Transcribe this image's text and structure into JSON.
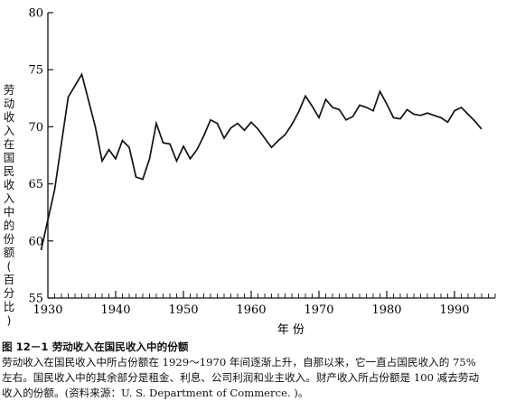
{
  "chart_data": {
    "type": "line",
    "ylabel": "劳动收入在国民收入中的份额(百分比)",
    "xlabel": "年 份",
    "xlim": [
      1930,
      1996
    ],
    "ylim": [
      55,
      80
    ],
    "x_ticks": [
      1930,
      1940,
      1950,
      1960,
      1970,
      1980,
      1990
    ],
    "y_ticks": [
      55,
      60,
      65,
      70,
      75,
      80
    ],
    "grid": false,
    "series": [
      {
        "x": [
          1929,
          1931,
          1933,
          1935,
          1937,
          1938,
          1939,
          1940,
          1941,
          1942,
          1943,
          1944,
          1945,
          1946,
          1947,
          1948,
          1949,
          1950,
          1951,
          1952,
          1953,
          1954,
          1955,
          1956,
          1957,
          1958,
          1959,
          1960,
          1961,
          1962,
          1963,
          1964,
          1965,
          1966,
          1967,
          1968,
          1969,
          1970,
          1971,
          1972,
          1973,
          1974,
          1975,
          1976,
          1977,
          1978,
          1979,
          1980,
          1981,
          1982,
          1983,
          1984,
          1985,
          1986,
          1987,
          1988,
          1989,
          1990,
          1991,
          1992,
          1993,
          1994
        ],
        "values": [
          59.2,
          64.5,
          72.6,
          74.6,
          70.0,
          67.0,
          68.0,
          67.2,
          68.8,
          68.2,
          65.6,
          65.4,
          67.2,
          70.3,
          68.6,
          68.5,
          67.0,
          68.3,
          67.2,
          68.0,
          69.2,
          70.6,
          70.3,
          69.0,
          69.9,
          70.3,
          69.7,
          70.4,
          69.8,
          69.0,
          68.2,
          68.8,
          69.3,
          70.2,
          71.3,
          72.7,
          71.8,
          70.8,
          72.4,
          71.7,
          71.5,
          70.6,
          70.9,
          71.9,
          71.7,
          71.4,
          73.1,
          72.0,
          70.8,
          70.7,
          71.5,
          71.1,
          71.0,
          71.2,
          71.0,
          70.8,
          70.4,
          71.4,
          71.7,
          71.1,
          70.5,
          69.8
        ]
      }
    ]
  },
  "caption": {
    "number": "图 12－1",
    "title": "劳动收入在国民收入中的份额",
    "line1": "劳动收入在国民收入中所占份额在 1929～1970 年间逐渐上升，自那以来，它一直占国民收入的 75%",
    "line2": "左右。国民收入中的其余部分是租金、利息、公司利润和业主收入。财产收入所占份额是 100 减去劳动",
    "line3": "收入的份额。(资料来源：U. S. Department of Commerce. )。"
  }
}
